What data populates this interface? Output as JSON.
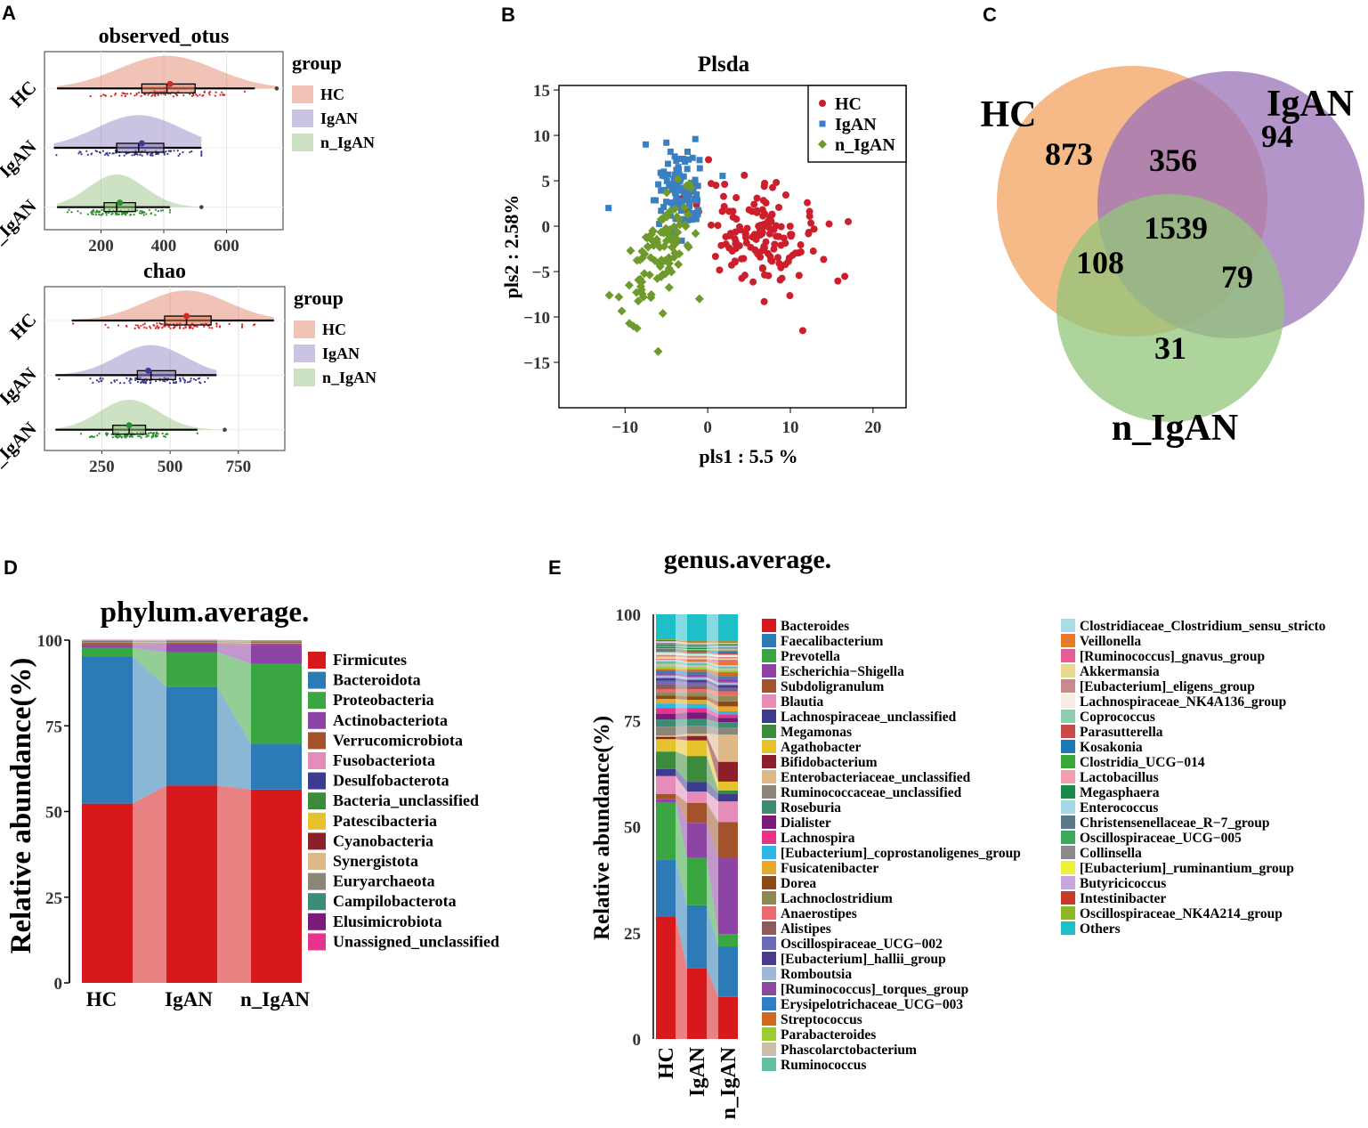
{
  "panels": {
    "a": "A",
    "b": "B",
    "c": "C",
    "d": "D",
    "e": "E"
  },
  "colors": {
    "HC": "#e07b5f",
    "IgAN": "#8c7bbf",
    "n_IgAN": "#8fbf7a",
    "HC_dot": "#d62728",
    "IgAN_dot": "#3b3b99",
    "n_IgAN_dot": "#2f8f2f",
    "pls_HC": "#cc1f2b",
    "pls_IgAN": "#3a7fc1",
    "pls_n_IgAN": "#6e9a2c",
    "venn_HC": "#f4a76a",
    "venn_IgAN": "#9b72b8",
    "venn_n_IgAN": "#92c57a"
  },
  "chart_data": [
    {
      "id": "observed_otus",
      "type": "raincloud",
      "title": "observed_otus",
      "groups": [
        "HC",
        "IgAN",
        "n_IgAN"
      ],
      "box": [
        {
          "group": "HC",
          "whisker_low": 60,
          "q1": 330,
          "median": 410,
          "q3": 500,
          "whisker_high": 690,
          "mean": 420,
          "outliers": [
            760
          ]
        },
        {
          "group": "IgAN",
          "whisker_low": 50,
          "q1": 250,
          "median": 320,
          "q3": 400,
          "whisker_high": 520,
          "mean": 330,
          "outliers": []
        },
        {
          "group": "n_IgAN",
          "whisker_low": 60,
          "q1": 210,
          "median": 250,
          "q3": 310,
          "whisker_high": 420,
          "mean": 260,
          "outliers": [
            520
          ]
        }
      ],
      "xticks": [
        200,
        400,
        600
      ],
      "xlim": [
        20,
        780
      ],
      "legend_title": "group",
      "legend": [
        "HC",
        "IgAN",
        "n_IgAN"
      ]
    },
    {
      "id": "chao",
      "type": "raincloud",
      "title": "chao",
      "groups": [
        "HC",
        "IgAN",
        "n_IgAN"
      ],
      "box": [
        {
          "group": "HC",
          "whisker_low": 140,
          "q1": 480,
          "median": 560,
          "q3": 650,
          "whisker_high": 880,
          "mean": 560,
          "outliers": []
        },
        {
          "group": "IgAN",
          "whisker_low": 80,
          "q1": 380,
          "median": 430,
          "q3": 520,
          "whisker_high": 670,
          "mean": 420,
          "outliers": []
        },
        {
          "group": "n_IgAN",
          "whisker_low": 80,
          "q1": 290,
          "median": 350,
          "q3": 410,
          "whisker_high": 600,
          "mean": 350,
          "outliers": [
            700
          ]
        }
      ],
      "xticks": [
        250,
        500,
        750
      ],
      "xlim": [
        40,
        920
      ],
      "legend_title": "group",
      "legend": [
        "HC",
        "IgAN",
        "n_IgAN"
      ]
    },
    {
      "id": "plsda",
      "type": "scatter",
      "title": "Plsda",
      "xlabel": "pls1 :  5.5 %",
      "ylabel": "pls2 :  2.58%",
      "xlim": [
        -18,
        24
      ],
      "ylim": [
        -20,
        15.5
      ],
      "xticks": [
        -10,
        0,
        10,
        20
      ],
      "yticks": [
        15,
        10,
        5,
        0,
        -5,
        -10,
        -15
      ],
      "legend": [
        "HC",
        "IgAN",
        "n_IgAN"
      ],
      "series": [
        {
          "name": "HC",
          "marker": "circle",
          "center": [
            6.5,
            -1.2
          ],
          "spread": [
            3.6,
            2.4
          ],
          "n": 150,
          "extra": [
            [
              11.5,
              -11.5
            ],
            [
              1,
              4.5
            ],
            [
              17,
              0.5
            ]
          ]
        },
        {
          "name": "IgAN",
          "marker": "square",
          "center": [
            -3.5,
            3.5
          ],
          "spread": [
            1.6,
            2.2
          ],
          "n": 110,
          "extra": [
            [
              -12,
              2
            ],
            [
              -7.5,
              9
            ],
            [
              -5,
              9.2
            ],
            [
              -1.5,
              9.6
            ],
            [
              -4.5,
              8.2
            ]
          ]
        },
        {
          "name": "n_IgAN",
          "marker": "diamond",
          "center": [
            -5.5,
            -2.5
          ],
          "spread": [
            1.4,
            3.4
          ],
          "n": 100,
          "extra": [
            [
              -6,
              -13.8
            ],
            [
              -9,
              -11
            ],
            [
              -9.5,
              -6.5
            ],
            [
              -1,
              -8
            ]
          ]
        }
      ]
    },
    {
      "id": "venn",
      "type": "venn",
      "sets": [
        "HC",
        "IgAN",
        "n_IgAN"
      ],
      "regions": {
        "HC_only": "873",
        "IgAN_only": "94",
        "n_IgAN_only": "31",
        "HC_IgAN": "356",
        "HC_n_IgAN": "108",
        "IgAN_n_IgAN": "79",
        "all": "1539"
      }
    },
    {
      "id": "phylum",
      "type": "area",
      "title": "phylum.average.",
      "ylabel": "Relative abundance(%)",
      "categories": [
        "HC",
        "IgAN",
        "n_IgAN"
      ],
      "yticks": [
        0,
        25,
        50,
        75,
        100
      ],
      "series": [
        {
          "name": "Firmicutes",
          "color": "#d7191c",
          "values": [
            52.3,
            57.6,
            56.4
          ]
        },
        {
          "name": "Bacteroidota",
          "color": "#2c7bb6",
          "values": [
            42.9,
            28.8,
            13.2
          ]
        },
        {
          "name": "Proteobacteria",
          "color": "#3aa641",
          "values": [
            2.5,
            10.1,
            23.5
          ]
        },
        {
          "name": "Actinobacteriota",
          "color": "#8e44a5",
          "values": [
            0.9,
            2.2,
            5.5
          ]
        },
        {
          "name": "Verrucomicrobiota",
          "color": "#a3522b",
          "values": [
            0.6,
            0.5,
            0.4
          ]
        },
        {
          "name": "Fusobacteriota",
          "color": "#e58cb9",
          "values": [
            0.2,
            0.2,
            0.3
          ]
        },
        {
          "name": "Desulfobacterota",
          "color": "#3b3b8f",
          "values": [
            0.2,
            0.2,
            0.2
          ]
        },
        {
          "name": "Bacteria_unclassified",
          "color": "#3c8a3c",
          "values": [
            0.1,
            0.1,
            0.1
          ]
        },
        {
          "name": "Patescibacteria",
          "color": "#e6c22c",
          "values": [
            0.1,
            0.1,
            0.1
          ]
        },
        {
          "name": "Cyanobacteria",
          "color": "#8b1f2a",
          "values": [
            0.05,
            0.05,
            0.05
          ]
        },
        {
          "name": "Synergistota",
          "color": "#deb887",
          "values": [
            0.05,
            0.05,
            0.05
          ]
        },
        {
          "name": "Euryarchaeota",
          "color": "#8c8578",
          "values": [
            0.05,
            0.05,
            0.05
          ]
        },
        {
          "name": "Campilobacterota",
          "color": "#3a8c75",
          "values": [
            0.05,
            0.05,
            0.05
          ]
        },
        {
          "name": "Elusimicrobiota",
          "color": "#7a1b7a",
          "values": [
            0.05,
            0.05,
            0.05
          ]
        },
        {
          "name": "Unassigned_unclassified",
          "color": "#e8338a",
          "values": [
            0.05,
            0.05,
            0.05
          ]
        }
      ]
    },
    {
      "id": "genus",
      "type": "stacked-bar",
      "title": "genus.average.",
      "ylabel": "Relative abundance(%)",
      "categories": [
        "HC",
        "IgAN",
        "n_IgAN"
      ],
      "yticks": [
        0,
        25,
        50,
        75,
        100
      ],
      "series": [
        {
          "name": "Bacteroides",
          "color": "#d7191c",
          "values": [
            27.5,
            15.8,
            8.5
          ]
        },
        {
          "name": "Faecalibacterium",
          "color": "#2c7bb6",
          "values": [
            12.8,
            14.2,
            10.2
          ]
        },
        {
          "name": "Prevotella",
          "color": "#3aa641",
          "values": [
            12.7,
            10.6,
            2.5
          ]
        },
        {
          "name": "Escherichia−Shigella",
          "color": "#8e44a5",
          "values": [
            0.8,
            7.9,
            15.4
          ]
        },
        {
          "name": "Subdoligranulum",
          "color": "#a3522b",
          "values": [
            1.2,
            4.5,
            7.2
          ]
        },
        {
          "name": "Blautia",
          "color": "#e58cb9",
          "values": [
            4.0,
            2.5,
            4.2
          ]
        },
        {
          "name": "Lachnospiraceae_unclassified",
          "color": "#3b3b8f",
          "values": [
            1.6,
            2.2,
            1.6
          ]
        },
        {
          "name": "Megamonas",
          "color": "#3c8a3c",
          "values": [
            3.9,
            5.8,
            0.6
          ]
        },
        {
          "name": "Agathobacter",
          "color": "#e6c22c",
          "values": [
            2.8,
            3.5,
            1.8
          ]
        },
        {
          "name": "Bifidobacterium",
          "color": "#8b1f2a",
          "values": [
            0.5,
            1.0,
            4.0
          ]
        },
        {
          "name": "Enterobacteriaceae_unclassified",
          "color": "#deb887",
          "values": [
            0.3,
            0.5,
            5.5
          ]
        },
        {
          "name": "Ruminococcaceae_unclassified",
          "color": "#8c8578",
          "values": [
            2.0,
            1.8,
            1.4
          ]
        },
        {
          "name": "Roseburia",
          "color": "#3a8c75",
          "values": [
            1.6,
            1.5,
            1.1
          ]
        },
        {
          "name": "Dialister",
          "color": "#7a1b7a",
          "values": [
            1.3,
            1.5,
            0.9
          ]
        },
        {
          "name": "Lachnospira",
          "color": "#e8338a",
          "values": [
            1.3,
            1.0,
            0.7
          ]
        },
        {
          "name": "[Eubacterium]_coprostanoligenes_group",
          "color": "#2fb5e8",
          "values": [
            1.0,
            0.9,
            0.6
          ]
        },
        {
          "name": "Fusicatenibacter",
          "color": "#e6a92c",
          "values": [
            1.0,
            0.9,
            1.0
          ]
        },
        {
          "name": "Dorea",
          "color": "#8b4a1c",
          "values": [
            0.8,
            0.8,
            1.0
          ]
        },
        {
          "name": "Lachnoclostridium",
          "color": "#8c8a52",
          "values": [
            0.7,
            0.8,
            1.1
          ]
        },
        {
          "name": "Anaerostipes",
          "color": "#e86a6a",
          "values": [
            0.7,
            0.8,
            0.9
          ]
        },
        {
          "name": "Alistipes",
          "color": "#8e5a5a",
          "values": [
            1.1,
            0.8,
            0.4
          ]
        },
        {
          "name": "Oscillospiraceae_UCG−002",
          "color": "#6a6ab8",
          "values": [
            0.8,
            0.7,
            0.3
          ]
        },
        {
          "name": "[Eubacterium]_hallii_group",
          "color": "#4a3a8c",
          "values": [
            0.6,
            0.6,
            0.6
          ]
        },
        {
          "name": "Romboutsia",
          "color": "#a0b8d8",
          "values": [
            0.6,
            0.6,
            0.5
          ]
        },
        {
          "name": "[Ruminococcus]_torques_group",
          "color": "#8a4aa0",
          "values": [
            0.5,
            0.6,
            0.8
          ]
        },
        {
          "name": "Erysipelotrichaceae_UCG−003",
          "color": "#2f7ec4",
          "values": [
            0.6,
            0.6,
            0.4
          ]
        },
        {
          "name": "Streptococcus",
          "color": "#d2691e",
          "values": [
            0.3,
            0.5,
            0.9
          ]
        },
        {
          "name": "Parabacteroides",
          "color": "#9acd32",
          "values": [
            0.6,
            0.5,
            0.4
          ]
        },
        {
          "name": "Phascolarctobacterium",
          "color": "#c8c0a8",
          "values": [
            0.6,
            0.5,
            0.4
          ]
        },
        {
          "name": "Ruminococcus",
          "color": "#5fbf9f",
          "values": [
            0.5,
            0.4,
            0.3
          ]
        },
        {
          "name": "Clostridiaceae_Clostridium_sensu_stricto",
          "color": "#a8dce8",
          "values": [
            0.4,
            0.3,
            0.3
          ]
        },
        {
          "name": "Veillonella",
          "color": "#e87a2c",
          "values": [
            0.1,
            0.3,
            0.6
          ]
        },
        {
          "name": "[Ruminococcus]_gnavus_group",
          "color": "#e85a9a",
          "values": [
            0.1,
            0.3,
            0.5
          ]
        },
        {
          "name": "Akkermansia",
          "color": "#e8d88a",
          "values": [
            0.5,
            0.4,
            0.3
          ]
        },
        {
          "name": "[Eubacterium]_eligens_group",
          "color": "#c88a8a",
          "values": [
            0.4,
            0.4,
            0.3
          ]
        },
        {
          "name": "Lachnospiraceae_NK4A136_group",
          "color": "#f8ece0",
          "values": [
            0.4,
            0.3,
            0.3
          ]
        },
        {
          "name": "Coprococcus",
          "color": "#8ad0b0",
          "values": [
            0.3,
            0.3,
            0.2
          ]
        },
        {
          "name": "Parasutterella",
          "color": "#c84a4a",
          "values": [
            0.3,
            0.3,
            0.2
          ]
        },
        {
          "name": "Kosakonia",
          "color": "#1a7ab8",
          "values": [
            0.1,
            0.2,
            0.4
          ]
        },
        {
          "name": "Clostridia_UCG−014",
          "color": "#3aa63a",
          "values": [
            0.3,
            0.2,
            0.2
          ]
        },
        {
          "name": "Lactobacillus",
          "color": "#f0a0b0",
          "values": [
            0.1,
            0.2,
            0.4
          ]
        },
        {
          "name": "Megasphaera",
          "color": "#1a8a4a",
          "values": [
            0.3,
            0.3,
            0.2
          ]
        },
        {
          "name": "Enterococcus",
          "color": "#a8d8e8",
          "values": [
            0.1,
            0.2,
            0.3
          ]
        },
        {
          "name": "Christensenellaceae_R−7_group",
          "color": "#5a7a8a",
          "values": [
            0.3,
            0.2,
            0.1
          ]
        },
        {
          "name": "Oscillospiraceae_UCG−005",
          "color": "#3aaa5a",
          "values": [
            0.3,
            0.2,
            0.1
          ]
        },
        {
          "name": "Collinsella",
          "color": "#8a8a8a",
          "values": [
            0.2,
            0.2,
            0.3
          ]
        },
        {
          "name": "[Eubacterium]_ruminantium_group",
          "color": "#f0f03a",
          "values": [
            0.2,
            0.2,
            0.1
          ]
        },
        {
          "name": "Butyricicoccus",
          "color": "#c8a8d8",
          "values": [
            0.2,
            0.2,
            0.1
          ]
        },
        {
          "name": "Intestinibacter",
          "color": "#c83a2a",
          "values": [
            0.2,
            0.2,
            0.2
          ]
        },
        {
          "name": "Oscillospiraceae_NK4A214_group",
          "color": "#8ab82a",
          "values": [
            0.2,
            0.1,
            0.1
          ]
        },
        {
          "name": "Others",
          "color": "#1fbfca",
          "values": [
            5.6,
            6.0,
            5.4
          ]
        }
      ]
    }
  ]
}
